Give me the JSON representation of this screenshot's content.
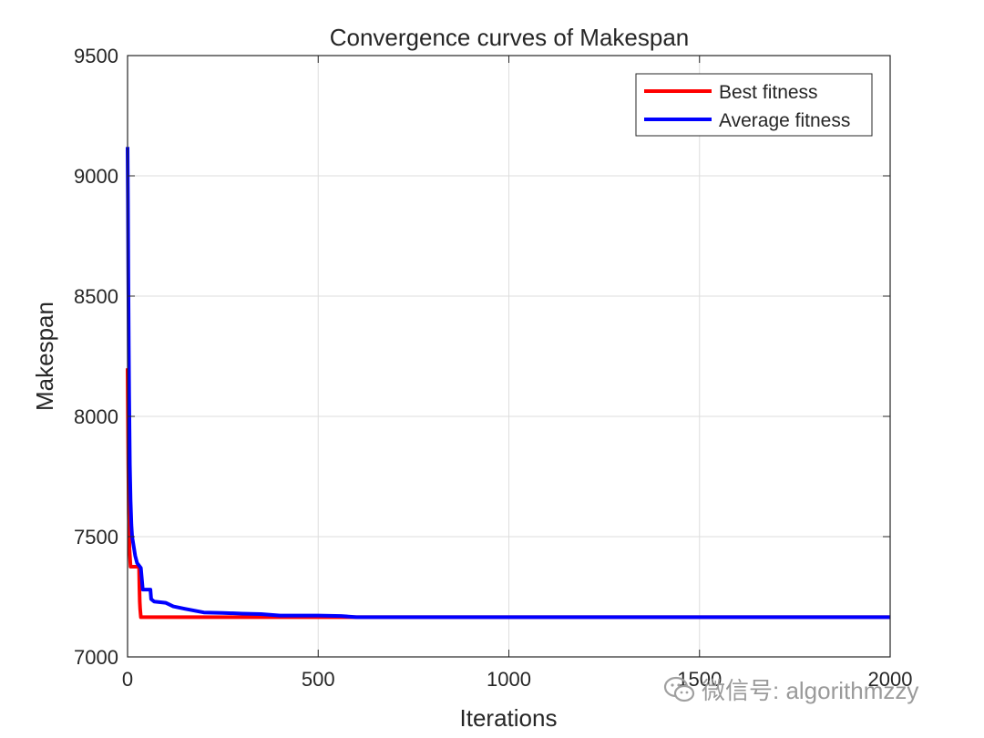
{
  "chart_data": {
    "type": "line",
    "title": "Convergence curves of Makespan",
    "xlabel": "Iterations",
    "ylabel": "Makespan",
    "xlim": [
      0,
      2000
    ],
    "ylim": [
      7000,
      9500
    ],
    "xticks": [
      0,
      500,
      1000,
      1500,
      2000
    ],
    "yticks": [
      7000,
      7500,
      8000,
      8500,
      9000,
      9500
    ],
    "grid": true,
    "legend": "top-right",
    "series": [
      {
        "name": "Best fitness",
        "color": "#ff0000",
        "x": [
          0,
          1,
          2,
          3,
          5,
          8,
          10,
          20,
          30,
          31,
          32,
          33,
          35,
          40,
          100,
          300,
          560,
          1000,
          1500,
          2000
        ],
        "y": [
          8200,
          8000,
          7800,
          7600,
          7450,
          7375,
          7375,
          7375,
          7375,
          7290,
          7230,
          7200,
          7165,
          7165,
          7165,
          7165,
          7165,
          7165,
          7165,
          7165
        ]
      },
      {
        "name": "Average fitness",
        "color": "#0000ff",
        "x": [
          0,
          1,
          2,
          3,
          4,
          5,
          6,
          8,
          10,
          12,
          15,
          20,
          25,
          30,
          35,
          40,
          60,
          62,
          70,
          100,
          120,
          150,
          200,
          250,
          300,
          350,
          400,
          450,
          500,
          560,
          600,
          1000,
          1500,
          2000
        ],
        "y": [
          9120,
          8900,
          8600,
          8300,
          8100,
          7950,
          7800,
          7650,
          7550,
          7500,
          7470,
          7420,
          7390,
          7380,
          7370,
          7280,
          7280,
          7240,
          7230,
          7225,
          7210,
          7200,
          7185,
          7183,
          7180,
          7178,
          7172,
          7172,
          7172,
          7170,
          7165,
          7165,
          7165,
          7165
        ]
      }
    ]
  },
  "watermark": {
    "text": "微信号: algorithmzzy",
    "icon": "wechat-icon"
  }
}
